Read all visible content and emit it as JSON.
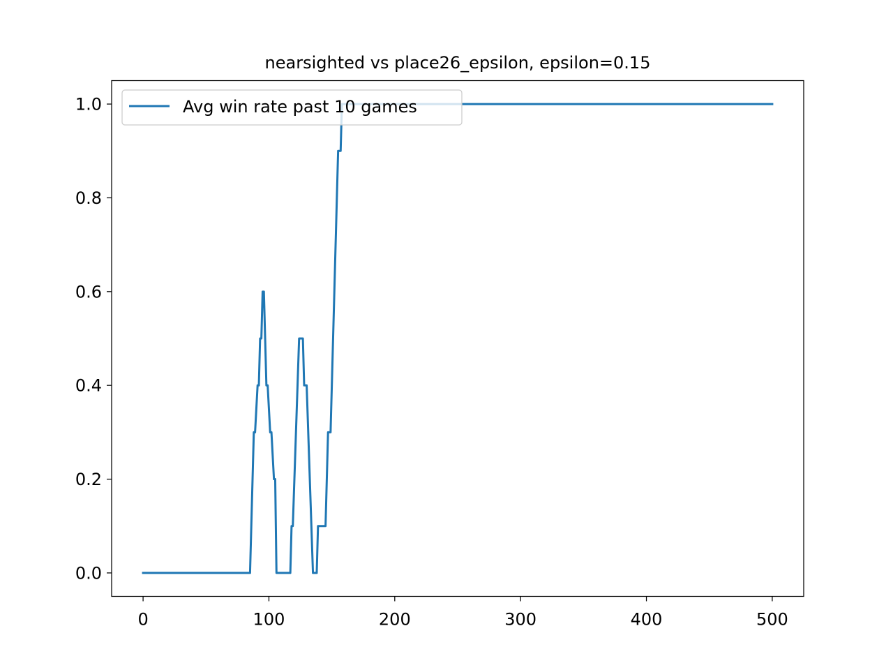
{
  "chart_data": {
    "type": "line",
    "title": "nearsighted vs place26_epsilon, epsilon=0.15",
    "xlabel": "",
    "ylabel": "",
    "xlim": [
      -25,
      525
    ],
    "ylim": [
      -0.05,
      1.05
    ],
    "xticks": [
      0,
      100,
      200,
      300,
      400,
      500
    ],
    "yticks": [
      0.0,
      0.2,
      0.4,
      0.6,
      0.8,
      1.0
    ],
    "xtick_labels": [
      "0",
      "100",
      "200",
      "300",
      "400",
      "500"
    ],
    "ytick_labels": [
      "0.0",
      "0.2",
      "0.4",
      "0.6",
      "0.8",
      "1.0"
    ],
    "grid": false,
    "legend_position": "top-left",
    "series": [
      {
        "name": "Avg win rate past 10 games",
        "color": "#1f77b4",
        "points": [
          [
            0,
            0.0
          ],
          [
            85,
            0.0
          ],
          [
            88,
            0.3
          ],
          [
            89,
            0.3
          ],
          [
            91,
            0.4
          ],
          [
            92,
            0.4
          ],
          [
            93,
            0.5
          ],
          [
            94,
            0.5
          ],
          [
            95,
            0.6
          ],
          [
            96,
            0.6
          ],
          [
            98,
            0.4
          ],
          [
            99,
            0.4
          ],
          [
            101,
            0.3
          ],
          [
            102,
            0.3
          ],
          [
            104,
            0.2
          ],
          [
            105,
            0.2
          ],
          [
            106,
            0.0
          ],
          [
            117,
            0.0
          ],
          [
            118,
            0.1
          ],
          [
            119,
            0.1
          ],
          [
            124,
            0.5
          ],
          [
            127,
            0.5
          ],
          [
            128,
            0.4
          ],
          [
            130,
            0.4
          ],
          [
            135,
            0.0
          ],
          [
            138,
            0.0
          ],
          [
            139,
            0.1
          ],
          [
            145,
            0.1
          ],
          [
            147,
            0.3
          ],
          [
            149,
            0.3
          ],
          [
            155,
            0.9
          ],
          [
            157,
            0.9
          ],
          [
            158,
            1.0
          ],
          [
            500,
            1.0
          ]
        ]
      }
    ]
  }
}
